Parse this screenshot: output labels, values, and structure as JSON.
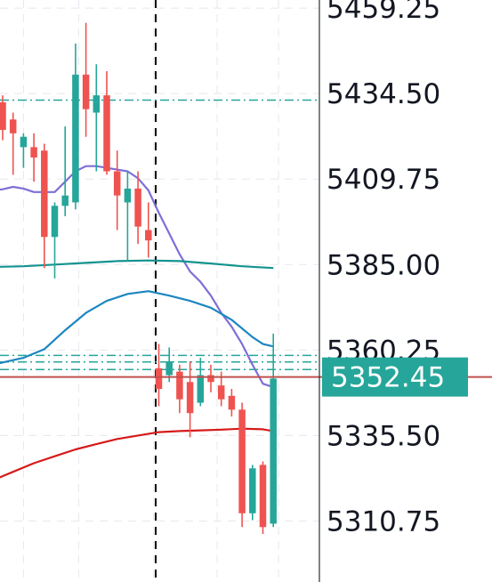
{
  "chart_data": {
    "type": "candlestick",
    "y_ticks": [
      "5459.25",
      "5434.50",
      "5409.75",
      "5385.00",
      "5360.25",
      "5335.50",
      "5310.75"
    ],
    "y_tick_values": [
      5459.25,
      5434.5,
      5409.75,
      5385.0,
      5360.25,
      5335.5,
      5310.75
    ],
    "ylim": [
      5293.1,
      5461.6
    ],
    "grid": true,
    "last_price": {
      "label": "5352.45",
      "value": 5352.45,
      "color": "#26a69a"
    },
    "colors": {
      "up": "#26a69a",
      "down": "#ef5350",
      "ma_purple": "#7e6fd6",
      "ma_teal": "#14938f",
      "ma_blue": "#1c86c0",
      "ma_red": "#d61a1a",
      "levels": "#26a69a",
      "last_price_line": "#c0504d",
      "session_marker": "#000000"
    },
    "candles": [
      {
        "i": 0,
        "o": 5432,
        "h": 5434,
        "l": 5421,
        "c": 5424
      },
      {
        "i": 1,
        "o": 5427,
        "h": 5429,
        "l": 5411,
        "c": 5423
      },
      {
        "i": 2,
        "o": 5419,
        "h": 5423,
        "l": 5413,
        "c": 5422
      },
      {
        "i": 3,
        "o": 5419,
        "h": 5423,
        "l": 5409,
        "c": 5416
      },
      {
        "i": 4,
        "o": 5418,
        "h": 5420,
        "l": 5384,
        "c": 5393
      },
      {
        "i": 5,
        "o": 5393,
        "h": 5403,
        "l": 5381,
        "c": 5402
      },
      {
        "i": 6,
        "o": 5402,
        "h": 5425,
        "l": 5399,
        "c": 5405
      },
      {
        "i": 7,
        "o": 5403,
        "h": 5449,
        "l": 5401,
        "c": 5440
      },
      {
        "i": 8,
        "o": 5440,
        "h": 5455,
        "l": 5422,
        "c": 5430
      },
      {
        "i": 9,
        "o": 5429,
        "h": 5443,
        "l": 5412,
        "c": 5434
      },
      {
        "i": 10,
        "o": 5434,
        "h": 5441,
        "l": 5411,
        "c": 5412
      },
      {
        "i": 11,
        "o": 5412,
        "h": 5418,
        "l": 5395,
        "c": 5405
      },
      {
        "i": 12,
        "o": 5403,
        "h": 5412,
        "l": 5386,
        "c": 5407
      },
      {
        "i": 13,
        "o": 5407,
        "h": 5412,
        "l": 5391,
        "c": 5396
      },
      {
        "i": 14,
        "o": 5395,
        "h": 5403,
        "l": 5387,
        "c": 5392
      },
      {
        "i": 15,
        "o": 5355,
        "h": 5362,
        "l": 5344,
        "c": 5349
      },
      {
        "i": 16,
        "o": 5353,
        "h": 5361,
        "l": 5351,
        "c": 5357
      },
      {
        "i": 17,
        "o": 5354,
        "h": 5356,
        "l": 5342,
        "c": 5346
      },
      {
        "i": 18,
        "o": 5351,
        "h": 5357,
        "l": 5335,
        "c": 5342
      },
      {
        "i": 19,
        "o": 5345,
        "h": 5358,
        "l": 5344,
        "c": 5353
      },
      {
        "i": 20,
        "o": 5353,
        "h": 5356,
        "l": 5348,
        "c": 5351
      },
      {
        "i": 21,
        "o": 5350,
        "h": 5354,
        "l": 5344,
        "c": 5346
      },
      {
        "i": 22,
        "o": 5347,
        "h": 5349,
        "l": 5341,
        "c": 5343
      },
      {
        "i": 23,
        "o": 5343,
        "h": 5345,
        "l": 5309,
        "c": 5313
      },
      {
        "i": 24,
        "o": 5313,
        "h": 5327,
        "l": 5311,
        "c": 5326
      },
      {
        "i": 25,
        "o": 5327,
        "h": 5328,
        "l": 5307,
        "c": 5309
      },
      {
        "i": 26,
        "o": 5310,
        "h": 5365,
        "l": 5309,
        "c": 5352
      }
    ],
    "moving_averages": [
      {
        "color_key": "ma_purple",
        "points": [
          [
            -1,
            5406.5
          ],
          [
            0,
            5406.8
          ],
          [
            1,
            5407.5
          ],
          [
            2,
            5407
          ],
          [
            3,
            5406
          ],
          [
            4,
            5406
          ],
          [
            5,
            5406
          ],
          [
            6,
            5409
          ],
          [
            7,
            5412
          ],
          [
            8,
            5413.5
          ],
          [
            9,
            5413.5
          ],
          [
            10,
            5413
          ],
          [
            11,
            5412.5
          ],
          [
            12,
            5412
          ],
          [
            13,
            5410
          ],
          [
            14,
            5406.5
          ],
          [
            15,
            5400
          ],
          [
            16,
            5394
          ],
          [
            17,
            5388
          ],
          [
            18,
            5383
          ],
          [
            19,
            5380
          ],
          [
            20,
            5376
          ],
          [
            21,
            5371
          ],
          [
            22,
            5367
          ],
          [
            23,
            5362
          ],
          [
            24,
            5356
          ],
          [
            25,
            5350.5
          ],
          [
            26,
            5349.5
          ]
        ]
      },
      {
        "color_key": "ma_teal",
        "points": [
          [
            -1,
            5384.3
          ],
          [
            2,
            5384.5
          ],
          [
            5,
            5385
          ],
          [
            8,
            5385.5
          ],
          [
            11,
            5386
          ],
          [
            14,
            5386.2
          ],
          [
            17,
            5386
          ],
          [
            20,
            5385.3
          ],
          [
            23,
            5384.5
          ],
          [
            26,
            5384
          ]
        ]
      },
      {
        "color_key": "ma_blue",
        "points": [
          [
            -1,
            5356
          ],
          [
            2,
            5358
          ],
          [
            4,
            5360.5
          ],
          [
            6,
            5366
          ],
          [
            8,
            5371
          ],
          [
            10,
            5374.5
          ],
          [
            12,
            5376.5
          ],
          [
            14,
            5377.3
          ],
          [
            16,
            5376
          ],
          [
            18,
            5374.5
          ],
          [
            20,
            5372.5
          ],
          [
            22,
            5369
          ],
          [
            24,
            5364
          ],
          [
            25,
            5362
          ],
          [
            26,
            5361.3
          ]
        ]
      },
      {
        "color_key": "ma_red",
        "points": [
          [
            -1,
            5322.5
          ],
          [
            1,
            5325
          ],
          [
            3,
            5327.5
          ],
          [
            5,
            5329.5
          ],
          [
            7,
            5331.5
          ],
          [
            9,
            5333
          ],
          [
            11,
            5334.5
          ],
          [
            13,
            5335.5
          ],
          [
            15,
            5336.5
          ],
          [
            17,
            5336.8
          ],
          [
            19,
            5337
          ],
          [
            21,
            5337.2
          ],
          [
            23,
            5337.5
          ],
          [
            25,
            5337.3
          ],
          [
            26,
            5336.8
          ]
        ]
      }
    ],
    "horizontal_levels": [
      5432.6,
      5358.7,
      5356.8,
      5354.6
    ],
    "session_marker_at": 14.7
  }
}
